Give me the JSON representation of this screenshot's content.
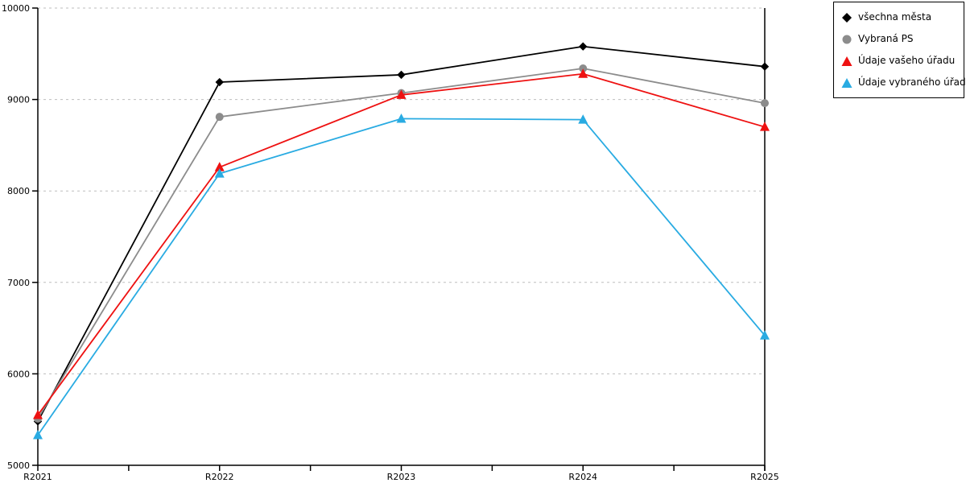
{
  "colors": {
    "background": "#ffffff",
    "axis": "#000000",
    "gridline": "#bdbdbd",
    "legend_border": "#000000",
    "legend_background": "#ffffff"
  },
  "chart_data": {
    "type": "line",
    "title": "",
    "xlabel": "",
    "ylabel": "",
    "categories": [
      "R2021",
      "R2022",
      "R2023",
      "R2024",
      "R2025"
    ],
    "series": [
      {
        "name": "všechna města",
        "marker": "diamond",
        "color": "#000000",
        "values": [
          5480,
          9190,
          9270,
          9580,
          9360
        ]
      },
      {
        "name": "Vybraná PS",
        "marker": "circle",
        "color": "#8c8c8c",
        "values": [
          5510,
          8810,
          9070,
          9340,
          8960
        ]
      },
      {
        "name": "Údaje vašeho úřadu",
        "marker": "triangle",
        "color": "#ee1111",
        "values": [
          5550,
          8260,
          9050,
          9280,
          8700
        ]
      },
      {
        "name": "Údaje vybraného úřadu",
        "marker": "triangle",
        "color": "#29abe2",
        "values": [
          5330,
          8190,
          8790,
          8780,
          6420
        ]
      }
    ],
    "ylim": [
      5000,
      10000
    ],
    "yticks": [
      5000,
      6000,
      7000,
      8000,
      9000,
      10000
    ],
    "x_minor_ticks_between_categories": 1,
    "grid": "horizontal-dashed",
    "gridlines_at": [
      6000,
      7000,
      8000,
      9000,
      10000
    ],
    "legend_position": "outside-top-right"
  }
}
